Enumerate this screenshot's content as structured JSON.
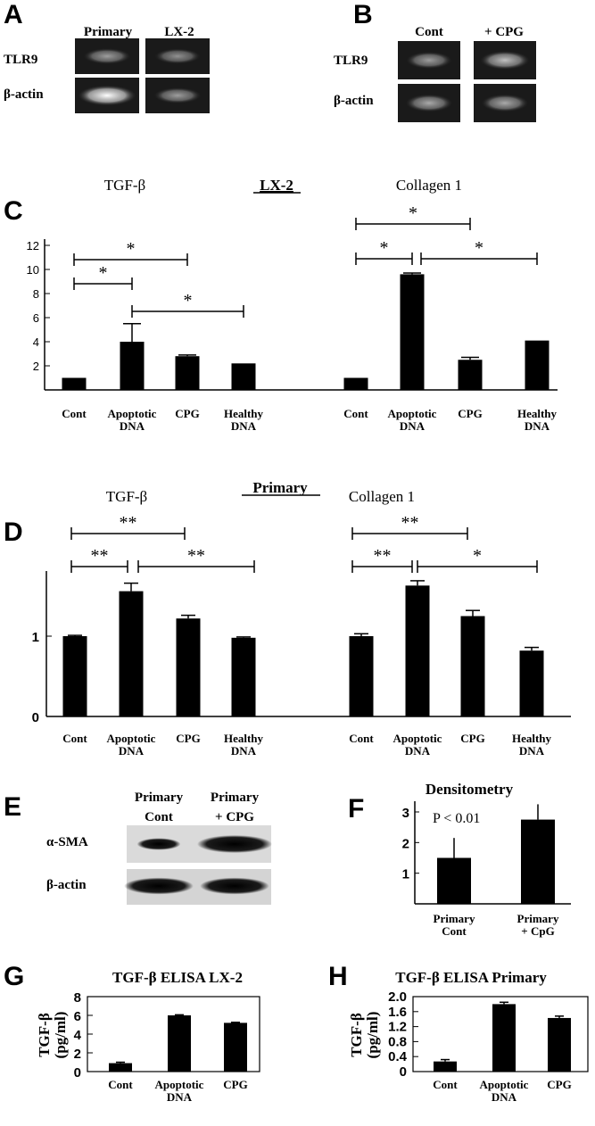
{
  "panels": {
    "A": {
      "letter": "A",
      "lanes": [
        "Primary",
        "LX-2"
      ],
      "rows": [
        "TLR9",
        "β-actin"
      ],
      "bands": [
        [
          0.55,
          0.5
        ],
        [
          1.0,
          0.55
        ]
      ]
    },
    "B": {
      "letter": "B",
      "lanes": [
        "Cont",
        "+ CPG"
      ],
      "rows": [
        "TLR9",
        "β-actin"
      ],
      "bands": [
        [
          0.55,
          0.7
        ],
        [
          0.6,
          0.6
        ]
      ]
    },
    "C": {
      "letter": "C",
      "heading": "LX-2"
    },
    "D": {
      "letter": "D",
      "heading": "Primary"
    },
    "E": {
      "letter": "E",
      "lanes": [
        "Primary\nCont",
        "Primary\n+ CPG"
      ],
      "rows": [
        "α-SMA",
        "β-actin"
      ],
      "bands": [
        [
          0.45,
          1.0
        ],
        [
          0.9,
          0.9
        ]
      ]
    },
    "F": {
      "letter": "F"
    },
    "G": {
      "letter": "G"
    },
    "H": {
      "letter": "H"
    }
  },
  "chart_data": [
    {
      "id": "C",
      "type": "bar",
      "title": "LX-2",
      "yticks": [
        2,
        4,
        6,
        8,
        10,
        12
      ],
      "ylim": [
        0,
        12
      ],
      "groups": [
        {
          "title": "TGF-β",
          "categories": [
            "Cont",
            "Apoptotic\nDNA",
            "CPG",
            "Healthy\nDNA"
          ],
          "values": [
            1.0,
            4.0,
            2.8,
            2.2
          ],
          "errors": [
            0,
            1.5,
            0.1,
            0
          ],
          "significance": [
            {
              "from": 0,
              "to": 2,
              "label": "*"
            },
            {
              "from": 0,
              "to": 1,
              "label": "*"
            },
            {
              "from": 1,
              "to": 3,
              "label": "*"
            }
          ]
        },
        {
          "title": "Collagen 1",
          "categories": [
            "Cont",
            "Apoptotic\nDNA",
            "CPG",
            "Healthy\nDNA"
          ],
          "values": [
            1.0,
            9.6,
            2.5,
            4.1
          ],
          "errors": [
            0,
            0.1,
            0.2,
            0
          ],
          "significance": [
            {
              "from": 0,
              "to": 2,
              "label": "*"
            },
            {
              "from": 0,
              "to": 1,
              "label": "*"
            },
            {
              "from": 1,
              "to": 3,
              "label": "*"
            }
          ]
        }
      ]
    },
    {
      "id": "D",
      "type": "bar",
      "title": "Primary",
      "yticks": [
        0,
        1
      ],
      "ylim": [
        0,
        1.75
      ],
      "groups": [
        {
          "title": "TGF-β",
          "categories": [
            "Cont",
            "Apoptotic\nDNA",
            "CPG",
            "Healthy\nDNA"
          ],
          "values": [
            1.0,
            1.56,
            1.22,
            0.98
          ],
          "errors": [
            0.01,
            0.1,
            0.04,
            0.01
          ],
          "significance": [
            {
              "from": 0,
              "to": 2,
              "label": "**"
            },
            {
              "from": 0,
              "to": 1,
              "label": "**"
            },
            {
              "from": 1,
              "to": 3,
              "label": "**"
            }
          ]
        },
        {
          "title": "Collagen 1",
          "categories": [
            "Cont",
            "Apoptotic\nDNA",
            "CPG",
            "Healthy\nDNA"
          ],
          "values": [
            1.0,
            1.63,
            1.25,
            0.82
          ],
          "errors": [
            0.03,
            0.06,
            0.07,
            0.04
          ],
          "significance": [
            {
              "from": 0,
              "to": 2,
              "label": "**"
            },
            {
              "from": 0,
              "to": 1,
              "label": "**"
            },
            {
              "from": 1,
              "to": 3,
              "label": "*"
            }
          ]
        }
      ]
    },
    {
      "id": "F",
      "type": "bar",
      "title": "Densitometry",
      "annotation": "P < 0.01",
      "yticks": [
        1,
        2,
        3
      ],
      "ylim": [
        0,
        3.3
      ],
      "categories": [
        "Primary\nCont",
        "Primary\n+ CpG"
      ],
      "values": [
        1.5,
        2.75
      ],
      "errors": [
        0.65,
        0.5
      ]
    },
    {
      "id": "G",
      "type": "bar",
      "title": "TGF-β ELISA LX-2",
      "ylabel": "TGF-β\n(pg/ml)",
      "yticks": [
        0,
        2,
        4,
        6,
        8
      ],
      "ylim": [
        0,
        8
      ],
      "categories": [
        "Cont",
        "Apoptotic\nDNA",
        "CPG"
      ],
      "values": [
        0.9,
        6.0,
        5.2
      ],
      "errors": [
        0.1,
        0.06,
        0.06
      ]
    },
    {
      "id": "H",
      "type": "bar",
      "title": "TGF-β ELISA Primary",
      "ylabel": "TGF-β\n(pg/ml)",
      "yticks": [
        "0",
        "0.4",
        "0.8",
        "1.2",
        "1.6",
        "2.0"
      ],
      "ylim": [
        0,
        2.0
      ],
      "categories": [
        "Cont",
        "Apoptotic\nDNA",
        "CPG"
      ],
      "values": [
        0.27,
        1.8,
        1.43
      ],
      "errors": [
        0.05,
        0.05,
        0.05
      ]
    }
  ]
}
